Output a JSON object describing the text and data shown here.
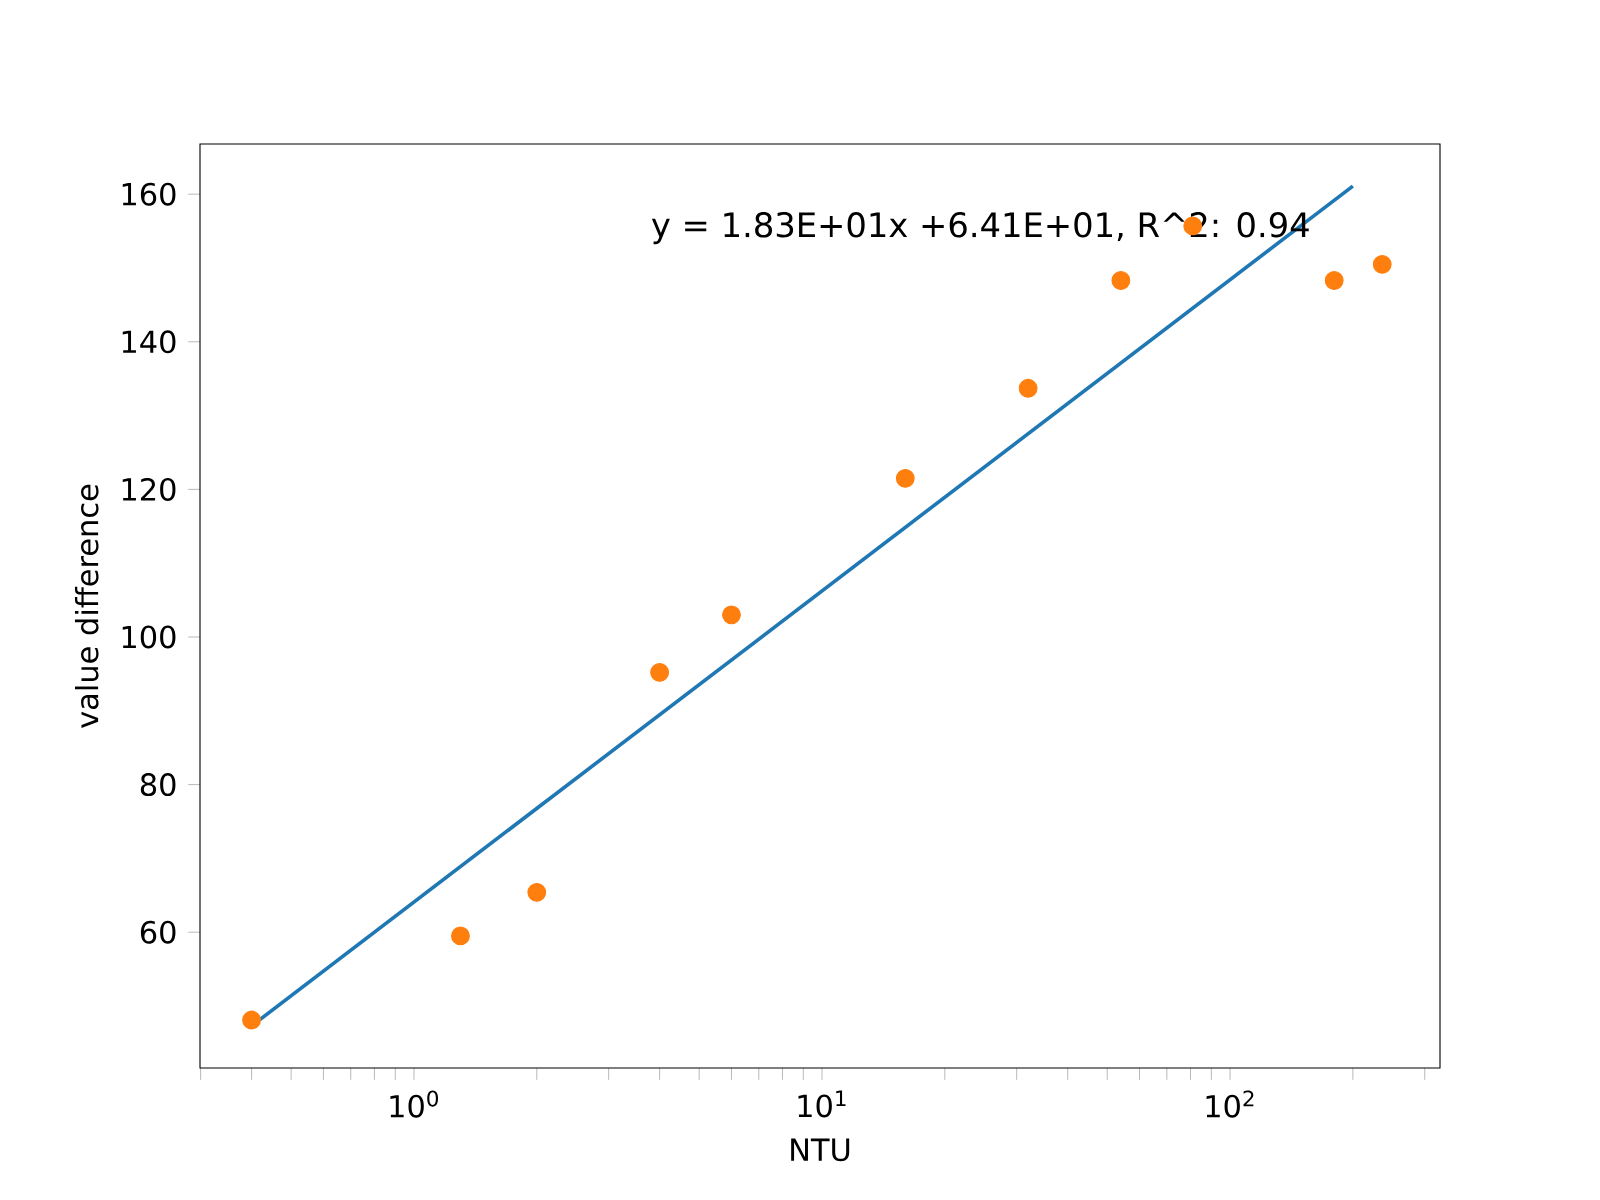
{
  "chart_data": {
    "type": "scatter",
    "xlabel": "NTU",
    "ylabel": "value difference",
    "log": "x",
    "grid": false,
    "xlim": [
      0.299,
      327
    ],
    "ylim": [
      41.6,
      166.8
    ],
    "xticks": [
      {
        "value": 0.3,
        "label": null
      },
      {
        "value": 0.4,
        "label": null
      },
      {
        "value": 0.5,
        "label": null
      },
      {
        "value": 0.6,
        "label": null
      },
      {
        "value": 0.7,
        "label": null
      },
      {
        "value": 0.8,
        "label": null
      },
      {
        "value": 0.9,
        "label": null
      },
      {
        "value": 1,
        "label": "10$^{0}$"
      },
      {
        "value": 2,
        "label": null
      },
      {
        "value": 3,
        "label": null
      },
      {
        "value": 4,
        "label": null
      },
      {
        "value": 5,
        "label": null
      },
      {
        "value": 6,
        "label": null
      },
      {
        "value": 7,
        "label": null
      },
      {
        "value": 8,
        "label": null
      },
      {
        "value": 9,
        "label": null
      },
      {
        "value": 10,
        "label": "10$^{1}$"
      },
      {
        "value": 20,
        "label": null
      },
      {
        "value": 30,
        "label": null
      },
      {
        "value": 40,
        "label": null
      },
      {
        "value": 50,
        "label": null
      },
      {
        "value": 60,
        "label": null
      },
      {
        "value": 70,
        "label": null
      },
      {
        "value": 80,
        "label": null
      },
      {
        "value": 90,
        "label": null
      },
      {
        "value": 100,
        "label": "10$^{2}$"
      },
      {
        "value": 200,
        "label": null
      },
      {
        "value": 300,
        "label": null
      }
    ],
    "yticks": [
      60,
      80,
      100,
      120,
      140,
      160
    ],
    "annotations": [
      "y = 1.83E+01x +6.41E+01, R^2: 0.94"
    ],
    "series": [
      {
        "type": "line",
        "color": "#1f77b4",
        "marker": "none",
        "line_style": "solid",
        "x": [
          0.4,
          200
        ],
        "values": [
          47.3,
          161.1
        ]
      },
      {
        "color": "#ff7f0e",
        "marker": "circle",
        "x": [
          0.4,
          1.3,
          2,
          4,
          6,
          16,
          32,
          54,
          81,
          180,
          236
        ],
        "values": [
          48.1,
          59.5,
          65.4,
          95.2,
          103,
          121.5,
          133.7,
          148.3,
          155.7,
          148.3,
          150.5
        ]
      }
    ]
  }
}
